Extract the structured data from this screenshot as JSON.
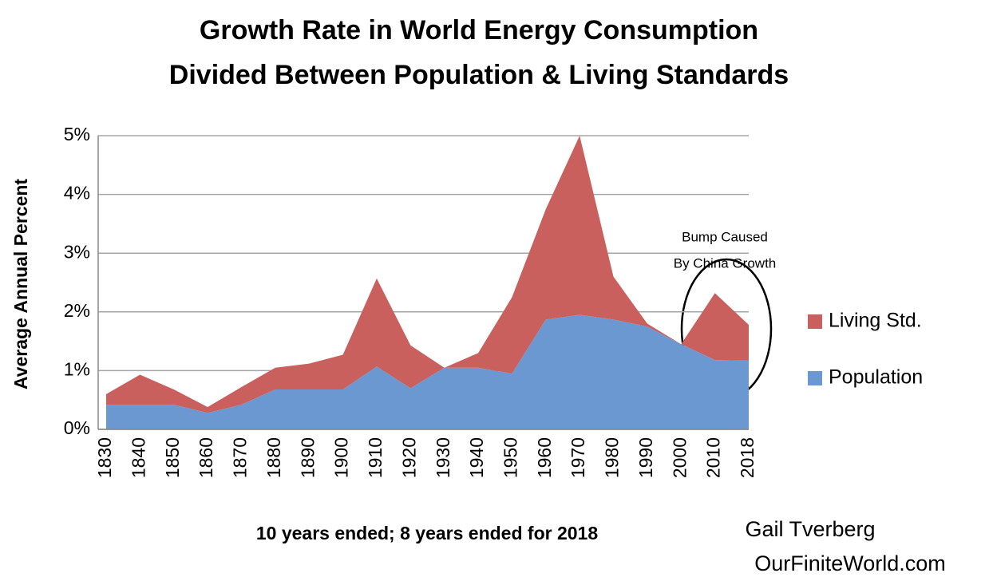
{
  "chart_data": {
    "type": "stacked_area",
    "title": [
      "Growth Rate in World Energy Consumption",
      "Divided Between Population & Living Standards"
    ],
    "y_label": "Average Annual Percent",
    "x_label": "10 years ended; 8 years ended for 2018",
    "categories": [
      "1830",
      "1840",
      "1850",
      "1860",
      "1870",
      "1880",
      "1890",
      "1900",
      "1910",
      "1920",
      "1930",
      "1940",
      "1950",
      "1960",
      "1970",
      "1980",
      "1990",
      "2000",
      "2010",
      "2018"
    ],
    "series": [
      {
        "name": "Population",
        "color": "#6b98d0",
        "values": [
          0.42,
          0.42,
          0.42,
          0.28,
          0.42,
          0.68,
          0.68,
          0.68,
          1.07,
          0.7,
          1.05,
          1.05,
          0.95,
          1.87,
          1.95,
          1.87,
          1.75,
          1.45,
          1.18,
          1.17
        ]
      },
      {
        "name": "Living Std.",
        "color": "#c9605e",
        "values": [
          0.18,
          0.51,
          0.26,
          0.1,
          0.3,
          0.37,
          0.44,
          0.59,
          1.5,
          0.73,
          0,
          0.25,
          1.3,
          1.88,
          3.05,
          0.73,
          0.05,
          0,
          1.14,
          0.61
        ]
      }
    ],
    "ylim": [
      0,
      5
    ],
    "yticks": [
      {
        "value": 0,
        "label": "0%"
      },
      {
        "value": 1,
        "label": "1%"
      },
      {
        "value": 2,
        "label": "2%"
      },
      {
        "value": 3,
        "label": "3%"
      },
      {
        "value": 4,
        "label": "4%"
      },
      {
        "value": 5,
        "label": "5%"
      }
    ],
    "grid": true,
    "legend": "right",
    "annotation": [
      "Bump Caused",
      "By China Growth"
    ],
    "credits": [
      "Gail Tverberg",
      "OurFiniteWorld.com"
    ]
  }
}
